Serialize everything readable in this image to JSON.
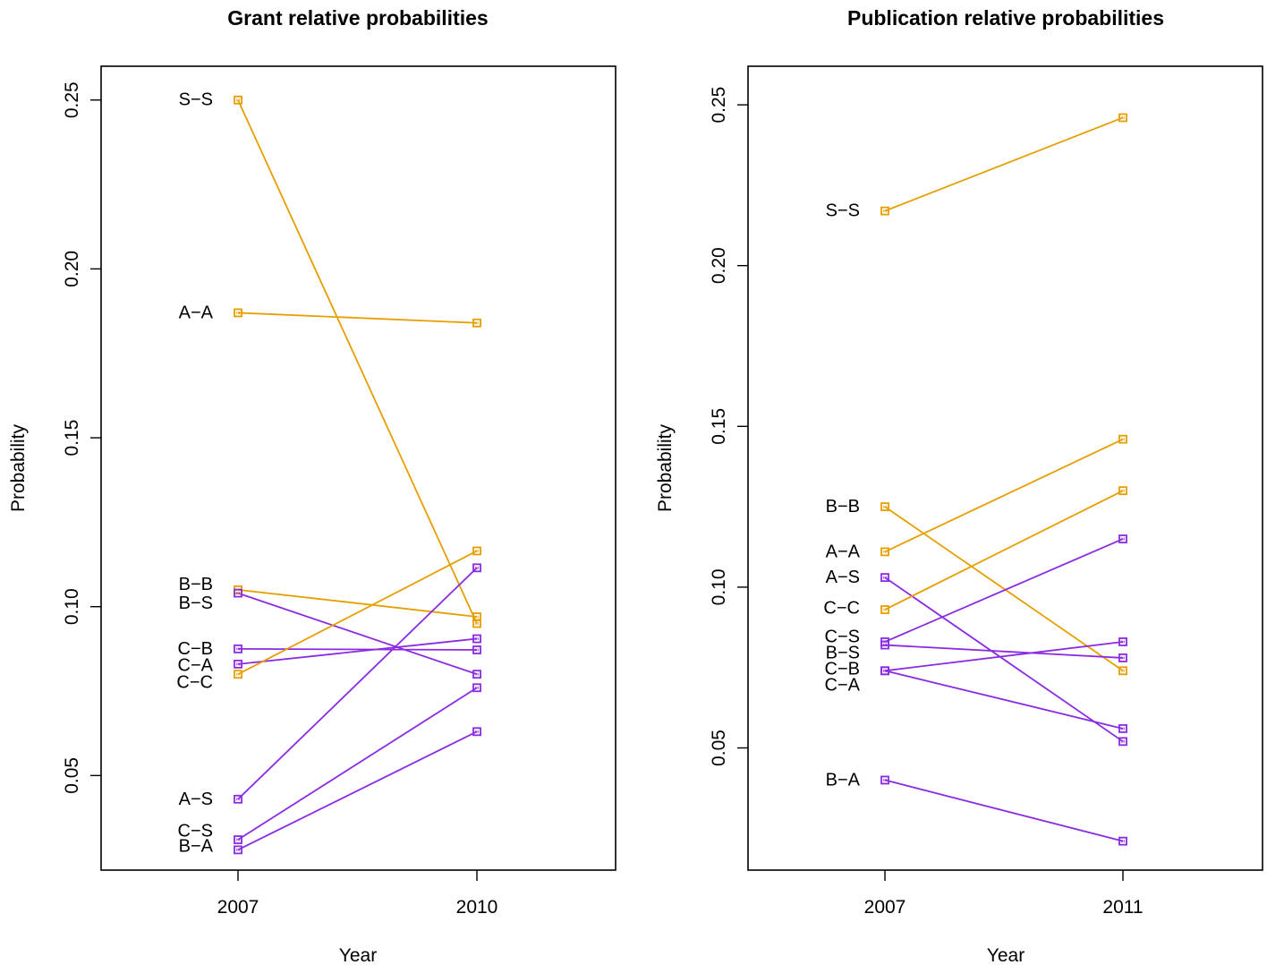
{
  "chart_data": [
    {
      "type": "line",
      "title": "Grant relative probabilities",
      "xlabel": "Year",
      "ylabel": "Probability",
      "x": [
        "2007",
        "2010"
      ],
      "ylim": [
        0.022,
        0.26
      ],
      "yticks": [
        "0.05",
        "0.10",
        "0.15",
        "0.20",
        "0.25"
      ],
      "grid": false,
      "colors": {
        "same_field": "#E69F00",
        "cross_field": "#8A2BE2"
      },
      "series": [
        {
          "name": "S−S",
          "group": "same_field",
          "values": [
            0.25,
            0.095
          ]
        },
        {
          "name": "A−A",
          "group": "same_field",
          "values": [
            0.187,
            0.184
          ]
        },
        {
          "name": "B−B",
          "group": "same_field",
          "values": [
            0.105,
            0.097
          ]
        },
        {
          "name": "B−S",
          "group": "cross_field",
          "values": [
            0.104,
            0.08
          ]
        },
        {
          "name": "C−B",
          "group": "cross_field",
          "values": [
            0.0875,
            0.0872
          ]
        },
        {
          "name": "C−A",
          "group": "cross_field",
          "values": [
            0.083,
            0.0905
          ]
        },
        {
          "name": "C−C",
          "group": "same_field",
          "values": [
            0.08,
            0.1165
          ]
        },
        {
          "name": "A−S",
          "group": "cross_field",
          "values": [
            0.043,
            0.1115
          ]
        },
        {
          "name": "C−S",
          "group": "cross_field",
          "values": [
            0.031,
            0.076
          ]
        },
        {
          "name": "B−A",
          "group": "cross_field",
          "values": [
            0.028,
            0.063
          ]
        }
      ],
      "point_labels": [
        {
          "text": "S−S",
          "y": 0.25
        },
        {
          "text": "A−A",
          "y": 0.187
        },
        {
          "text": "B−B",
          "y": 0.1065
        },
        {
          "text": "B−S",
          "y": 0.101
        },
        {
          "text": "C−B",
          "y": 0.0875
        },
        {
          "text": "C−A",
          "y": 0.0825
        },
        {
          "text": "C−C",
          "y": 0.0775
        },
        {
          "text": "A−S",
          "y": 0.043
        },
        {
          "text": "C−S",
          "y": 0.0335
        },
        {
          "text": "B−A",
          "y": 0.029
        }
      ]
    },
    {
      "type": "line",
      "title": "Publication relative probabilities",
      "xlabel": "Year",
      "ylabel": "Probability",
      "x": [
        "2007",
        "2011"
      ],
      "ylim": [
        0.012,
        0.262
      ],
      "yticks": [
        "0.05",
        "0.10",
        "0.15",
        "0.20",
        "0.25"
      ],
      "grid": false,
      "colors": {
        "same_field": "#E69F00",
        "cross_field": "#8A2BE2"
      },
      "series": [
        {
          "name": "S−S",
          "group": "same_field",
          "values": [
            0.217,
            0.246
          ]
        },
        {
          "name": "B−B",
          "group": "same_field",
          "values": [
            0.125,
            0.074
          ]
        },
        {
          "name": "A−A",
          "group": "same_field",
          "values": [
            0.111,
            0.146
          ]
        },
        {
          "name": "A−S",
          "group": "cross_field",
          "values": [
            0.103,
            0.052
          ]
        },
        {
          "name": "C−C",
          "group": "same_field",
          "values": [
            0.093,
            0.13
          ]
        },
        {
          "name": "C−S",
          "group": "cross_field",
          "values": [
            0.083,
            0.115
          ]
        },
        {
          "name": "B−S",
          "group": "cross_field",
          "values": [
            0.082,
            0.078
          ]
        },
        {
          "name": "C−B",
          "group": "cross_field",
          "values": [
            0.074,
            0.083
          ]
        },
        {
          "name": "C−A",
          "group": "cross_field",
          "values": [
            0.074,
            0.056
          ]
        },
        {
          "name": "B−A",
          "group": "cross_field",
          "values": [
            0.04,
            0.021
          ]
        }
      ],
      "point_labels": [
        {
          "text": "S−S",
          "y": 0.217
        },
        {
          "text": "B−B",
          "y": 0.125
        },
        {
          "text": "A−A",
          "y": 0.111
        },
        {
          "text": "A−S",
          "y": 0.103
        },
        {
          "text": "C−C",
          "y": 0.0935
        },
        {
          "text": "C−S",
          "y": 0.0845
        },
        {
          "text": "B−S",
          "y": 0.0795
        },
        {
          "text": "C−B",
          "y": 0.0745
        },
        {
          "text": "C−A",
          "y": 0.0695
        },
        {
          "text": "B−A",
          "y": 0.04
        }
      ]
    }
  ]
}
